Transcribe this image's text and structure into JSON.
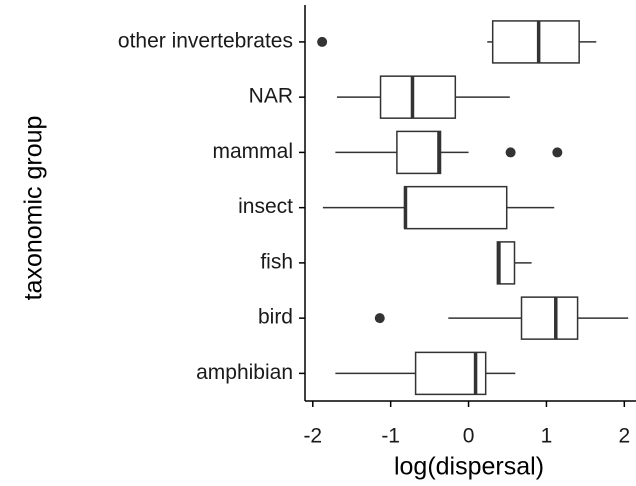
{
  "chart_data": {
    "type": "boxplot",
    "orientation": "horizontal",
    "x_label": "log(dispersal)",
    "y_label": "taxonomic group",
    "categories": [
      "other invertebrates",
      "NAR",
      "mammal",
      "insect",
      "fish",
      "bird",
      "amphibian"
    ],
    "boxes": [
      {
        "low": 0.24,
        "q1": 0.31,
        "median": 0.9,
        "q3": 1.42,
        "high": 1.64,
        "outliers": [
          -1.88
        ]
      },
      {
        "low": -1.69,
        "q1": -1.13,
        "median": -0.72,
        "q3": -0.17,
        "high": 0.53,
        "outliers": []
      },
      {
        "low": -1.71,
        "q1": -0.92,
        "median": -0.38,
        "q3": -0.36,
        "high": 0.0,
        "outliers": [
          0.54,
          1.14
        ]
      },
      {
        "low": -1.87,
        "q1": -0.82,
        "median": -0.81,
        "q3": 0.49,
        "high": 1.1,
        "outliers": []
      },
      {
        "low": 0.37,
        "q1": 0.37,
        "median": 0.39,
        "q3": 0.59,
        "high": 0.81,
        "outliers": []
      },
      {
        "low": -0.26,
        "q1": 0.68,
        "median": 1.12,
        "q3": 1.4,
        "high": 2.05,
        "outliers": [
          -1.14
        ]
      },
      {
        "low": -1.71,
        "q1": -0.68,
        "median": 0.09,
        "q3": 0.22,
        "high": 0.6,
        "outliers": []
      }
    ],
    "color": "#333333",
    "xlim": [
      -2.1,
      2.15
    ],
    "xticks": [
      -2,
      -1,
      0,
      1,
      2
    ]
  }
}
